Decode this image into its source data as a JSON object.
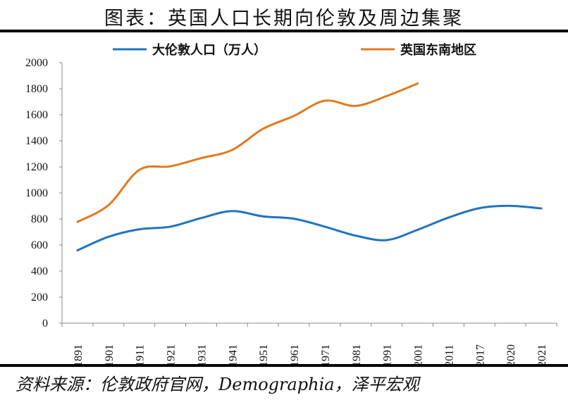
{
  "title": "图表：英国人口长期向伦敦及周边集聚",
  "source": "资料来源：伦敦政府官网，Demographia，泽平宏观",
  "chart_data": {
    "type": "line",
    "categories": [
      "1891",
      "1901",
      "1911",
      "1921",
      "1931",
      "1941",
      "1951",
      "1961",
      "1971",
      "1981",
      "1991",
      "2001",
      "2011",
      "2017",
      "2020",
      "2021"
    ],
    "ylim": [
      0,
      2000
    ],
    "yticks": [
      0,
      200,
      400,
      600,
      800,
      1000,
      1200,
      1400,
      1600,
      1800,
      2000
    ],
    "legend_position": "top",
    "grid": false,
    "series": [
      {
        "name": "大伦敦人口（万人）",
        "color": "#1f74c0",
        "values": [
          559,
          663,
          721,
          741,
          807,
          861,
          820,
          802,
          741,
          672,
          638,
          717,
          811,
          883,
          901,
          881
        ]
      },
      {
        "name": "英国东南地区",
        "color": "#e07a1f",
        "values": [
          778,
          906,
          1177,
          1204,
          1267,
          1330,
          1492,
          1591,
          1708,
          1668,
          1744,
          1840,
          null,
          null,
          null,
          null
        ]
      }
    ]
  }
}
